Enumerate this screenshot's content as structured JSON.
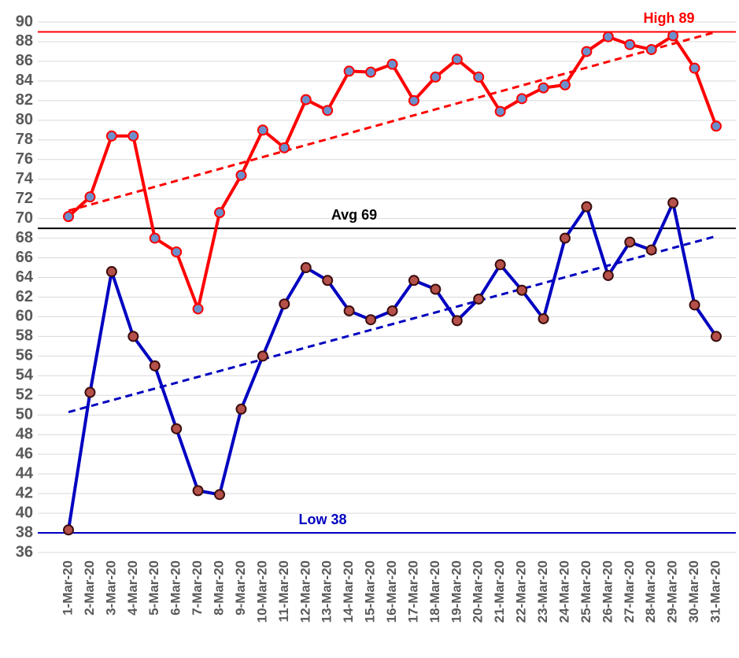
{
  "chart_data": {
    "type": "line",
    "categories": [
      "1-Mar-20",
      "2-Mar-20",
      "3-Mar-20",
      "4-Mar-20",
      "5-Mar-20",
      "6-Mar-20",
      "7-Mar-20",
      "8-Mar-20",
      "9-Mar-20",
      "10-Mar-20",
      "11-Mar-20",
      "12-Mar-20",
      "13-Mar-20",
      "14-Mar-20",
      "15-Mar-20",
      "16-Mar-20",
      "17-Mar-20",
      "18-Mar-20",
      "19-Mar-20",
      "20-Mar-20",
      "21-Mar-20",
      "22-Mar-20",
      "23-Mar-20",
      "24-Mar-20",
      "25-Mar-20",
      "26-Mar-20",
      "27-Mar-20",
      "28-Mar-20",
      "29-Mar-20",
      "30-Mar-20",
      "31-Mar-20"
    ],
    "series": [
      {
        "color": "#ff0000",
        "marker_color": "#6b8fcb",
        "values": [
          70.2,
          72.2,
          78.4,
          78.4,
          68.0,
          66.6,
          60.8,
          70.6,
          74.4,
          79.0,
          77.2,
          82.1,
          81.0,
          85.0,
          84.9,
          85.7,
          82.0,
          84.4,
          86.2,
          84.4,
          80.9,
          82.2,
          83.3,
          83.6,
          87.0,
          88.5,
          87.7,
          87.2,
          88.6,
          85.3,
          79.4
        ],
        "trend": [
          70.8,
          89.0
        ]
      },
      {
        "color": "#0000c0",
        "marker_color": "#b5514a",
        "values": [
          38.3,
          52.3,
          64.6,
          58.0,
          55.0,
          48.6,
          42.3,
          41.9,
          50.6,
          56.0,
          61.3,
          65.0,
          63.7,
          60.6,
          59.7,
          60.6,
          63.7,
          62.8,
          59.6,
          61.8,
          65.3,
          62.7,
          59.8,
          68.0,
          71.2,
          64.2,
          67.6,
          66.8,
          71.6,
          61.2,
          58.0
        ],
        "trend": [
          50.3,
          68.2
        ]
      }
    ],
    "reference_lines": [
      {
        "text": "High 89",
        "value": 89,
        "color": "#ff0000",
        "text_color": "#ff0000"
      },
      {
        "text": "Avg 69",
        "value": 69,
        "color": "#000000",
        "text_color": "#000000"
      },
      {
        "text": "Low 38",
        "value": 38,
        "color": "#0000c0",
        "text_color": "#0000c0"
      }
    ],
    "ylim": [
      36,
      90
    ],
    "yticks": [
      36,
      38,
      40,
      42,
      44,
      46,
      48,
      50,
      52,
      54,
      56,
      58,
      60,
      62,
      64,
      66,
      68,
      70,
      72,
      74,
      76,
      78,
      80,
      82,
      84,
      86,
      88,
      90
    ],
    "grid": true
  }
}
